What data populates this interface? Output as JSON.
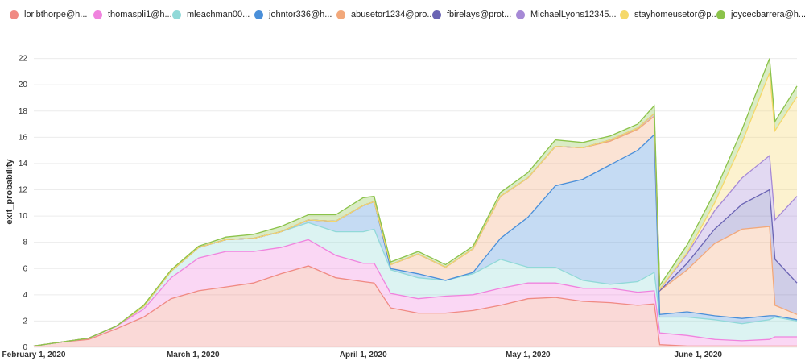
{
  "chart_data": {
    "type": "area",
    "stacked": true,
    "ylabel": "exit_probability",
    "ylim": [
      0,
      24
    ],
    "yticks": [
      0,
      2,
      4,
      6,
      8,
      10,
      12,
      14,
      16,
      18,
      20,
      22
    ],
    "xlim": [
      "2020-02-01",
      "2020-06-19"
    ],
    "xticks": [
      {
        "date": "2020-02-01",
        "label": "February 1, 2020"
      },
      {
        "date": "2020-03-01",
        "label": "March 1, 2020"
      },
      {
        "date": "2020-04-01",
        "label": "April 1, 2020"
      },
      {
        "date": "2020-05-01",
        "label": "May 1, 2020"
      },
      {
        "date": "2020-06-01",
        "label": "June 1, 2020"
      }
    ],
    "grid": true,
    "legend_position": "top",
    "x": [
      "2020-02-01",
      "2020-02-06",
      "2020-02-11",
      "2020-02-16",
      "2020-02-21",
      "2020-02-26",
      "2020-03-02",
      "2020-03-07",
      "2020-03-12",
      "2020-03-17",
      "2020-03-22",
      "2020-03-27",
      "2020-04-01",
      "2020-04-03",
      "2020-04-06",
      "2020-04-11",
      "2020-04-16",
      "2020-04-21",
      "2020-04-26",
      "2020-05-01",
      "2020-05-06",
      "2020-05-11",
      "2020-05-16",
      "2020-05-21",
      "2020-05-24",
      "2020-05-25",
      "2020-05-30",
      "2020-06-04",
      "2020-06-09",
      "2020-06-14",
      "2020-06-15",
      "2020-06-19"
    ],
    "series": [
      {
        "name": "loribthorpe@h...",
        "color": "#f08a83",
        "values": [
          0.1,
          0.4,
          0.6,
          1.4,
          2.3,
          3.7,
          4.3,
          4.6,
          4.9,
          5.6,
          6.2,
          5.3,
          5.0,
          4.9,
          3.0,
          2.6,
          2.6,
          2.8,
          3.2,
          3.7,
          3.8,
          3.5,
          3.4,
          3.2,
          3.3,
          0.2,
          0.1,
          0.1,
          0.1,
          0.1,
          0.1,
          0.1
        ]
      },
      {
        "name": "thomaspli1@h...",
        "color": "#f083de",
        "values": [
          0.0,
          0.0,
          0.1,
          0.2,
          0.6,
          1.6,
          2.5,
          2.7,
          2.4,
          2.0,
          2.0,
          1.7,
          1.4,
          1.5,
          1.1,
          1.1,
          1.3,
          1.2,
          1.3,
          1.2,
          1.1,
          1.0,
          1.1,
          1.0,
          1.0,
          0.9,
          0.8,
          0.5,
          0.4,
          0.5,
          0.7,
          0.7
        ]
      },
      {
        "name": "mleachman00...",
        "color": "#91d9d8",
        "values": [
          0.0,
          0.0,
          0.0,
          0.0,
          0.2,
          0.5,
          0.8,
          0.9,
          1.0,
          1.2,
          1.3,
          1.8,
          2.4,
          2.6,
          1.8,
          1.6,
          1.2,
          1.6,
          2.2,
          1.2,
          1.2,
          0.6,
          0.3,
          0.8,
          1.4,
          1.2,
          1.4,
          1.5,
          1.3,
          1.5,
          1.5,
          1.2
        ]
      },
      {
        "name": "johntor336@h...",
        "color": "#4a8fd9",
        "values": [
          0.0,
          0.0,
          0.0,
          0.0,
          0.0,
          0.0,
          0.0,
          0.0,
          0.0,
          0.0,
          0.2,
          0.8,
          2.0,
          2.1,
          0.1,
          0.3,
          0.0,
          0.1,
          1.6,
          3.8,
          6.2,
          7.7,
          9.1,
          10.0,
          10.5,
          0.2,
          0.4,
          0.3,
          0.4,
          0.3,
          0.1,
          0.1
        ]
      },
      {
        "name": "abusetor1234@pro...",
        "color": "#f2a87a",
        "values": [
          0.0,
          0.0,
          0.0,
          0.0,
          0.0,
          0.0,
          0.0,
          0.0,
          0.0,
          0.0,
          0.0,
          0.0,
          0.0,
          0.0,
          0.3,
          1.5,
          1.0,
          1.8,
          3.2,
          3.0,
          3.0,
          2.4,
          1.8,
          1.6,
          1.4,
          1.8,
          3.2,
          5.5,
          6.8,
          6.8,
          0.8,
          0.4
        ]
      },
      {
        "name": "fbirelays@prot...",
        "color": "#6a64b4",
        "values": [
          0.0,
          0.0,
          0.0,
          0.0,
          0.0,
          0.0,
          0.0,
          0.0,
          0.0,
          0.0,
          0.0,
          0.0,
          0.0,
          0.0,
          0.0,
          0.0,
          0.0,
          0.0,
          0.0,
          0.0,
          0.0,
          0.0,
          0.1,
          0.1,
          0.2,
          0.0,
          0.5,
          1.1,
          1.9,
          2.8,
          3.5,
          2.4
        ]
      },
      {
        "name": "MichaelLyons12345...",
        "color": "#a689d6",
        "values": [
          0.0,
          0.0,
          0.0,
          0.0,
          0.0,
          0.0,
          0.0,
          0.0,
          0.0,
          0.0,
          0.0,
          0.0,
          0.0,
          0.0,
          0.0,
          0.0,
          0.0,
          0.0,
          0.0,
          0.0,
          0.0,
          0.0,
          0.0,
          0.0,
          0.0,
          0.1,
          0.7,
          1.4,
          2.0,
          2.6,
          3.0,
          6.6
        ]
      },
      {
        "name": "stayhomeusetor@p...",
        "color": "#f5d86a",
        "values": [
          0.0,
          0.0,
          0.0,
          0.0,
          0.0,
          0.0,
          0.0,
          0.0,
          0.0,
          0.0,
          0.0,
          0.0,
          0.0,
          0.0,
          0.0,
          0.0,
          0.0,
          0.0,
          0.0,
          0.0,
          0.0,
          0.0,
          0.0,
          0.0,
          0.0,
          0.0,
          0.1,
          0.6,
          2.7,
          6.3,
          6.8,
          7.6
        ]
      },
      {
        "name": "joycecbarrera@h...",
        "color": "#8bc34a",
        "values": [
          0.0,
          0.0,
          0.0,
          0.0,
          0.1,
          0.1,
          0.1,
          0.2,
          0.3,
          0.4,
          0.4,
          0.5,
          0.6,
          0.4,
          0.2,
          0.2,
          0.2,
          0.2,
          0.3,
          0.4,
          0.5,
          0.4,
          0.3,
          0.3,
          0.6,
          0.3,
          0.6,
          0.8,
          1.0,
          1.1,
          0.7,
          0.8
        ]
      }
    ]
  }
}
